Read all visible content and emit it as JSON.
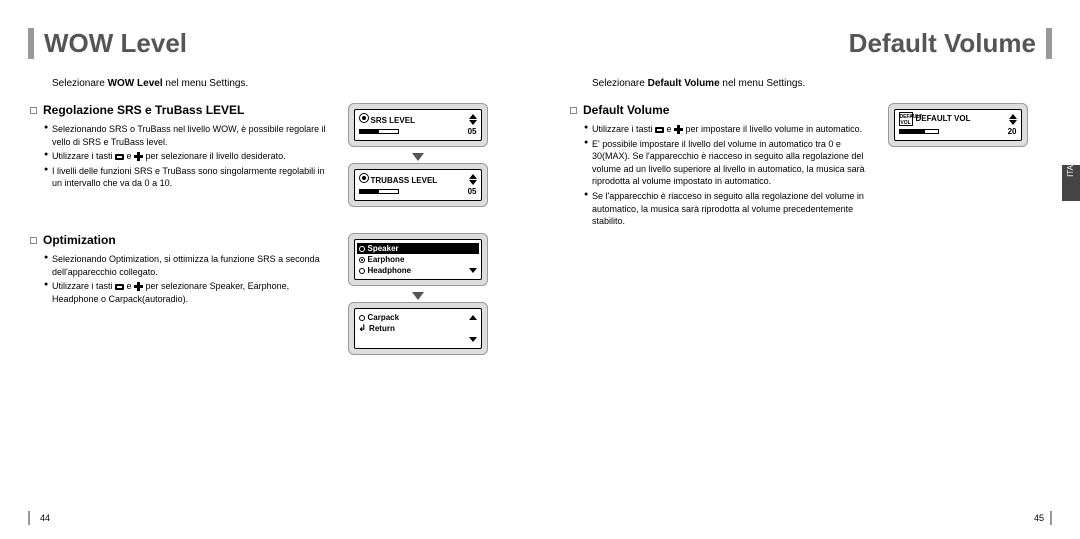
{
  "header": {
    "left": "WOW Level",
    "right": "Default Volume"
  },
  "leftPage": {
    "instructionPrefix": "Selezionare ",
    "instructionBold": "WOW Level",
    "instructionSuffix": " nel menu Settings.",
    "section1": {
      "title": "Regolazione SRS e TruBass LEVEL",
      "b1": "Selezionando SRS o TruBass nel livello WOW, è possibile regolare il vello di SRS e TruBass level.",
      "b2a": "Utilizzare i tasti ",
      "b2b": " e ",
      "b2c": " per selezionare il livello desiderato.",
      "b3": "I livelli delle funzioni SRS e TruBass sono singolarmente regolabili in un intervallo che va da 0 a 10.",
      "srsLabel": "SRS LEVEL",
      "srsValue": "05",
      "trubassLabel": "TRUBASS LEVEL",
      "trubassValue": "05"
    },
    "section2": {
      "title": "Optimization",
      "b1": "Selezionando Optimization, si ottimizza la funzione SRS a seconda dell'apparecchio collegato.",
      "b2a": "Utilizzare i tasti ",
      "b2b": " e ",
      "b2c": " per selezionare Speaker, Earphone, Headphone o Carpack(autoradio).",
      "opts": {
        "o1": "Speaker",
        "o2": "Earphone",
        "o3": "Headphone",
        "o4": "Carpack",
        "o5": "Return"
      }
    },
    "pageNum": "44"
  },
  "rightPage": {
    "instructionPrefix": "Selezionare ",
    "instructionBold": "Default Volume",
    "instructionSuffix": " nel menu Settings.",
    "section1": {
      "title": "Default Volume",
      "b1a": "Utilizzare i tasti ",
      "b1b": " e ",
      "b1c": " per impostare il livello volume in automatico.",
      "b2": "E' possibile impostare il livello del volume in automatico tra 0 e 30(MAX). Se l'apparecchio è riacceso in seguito alla regolazione del volume ad un livello superiore al livello in automatico, la musica sarà riprodotta al volume impostato in automatico.",
      "b3": "Se l'apparecchio è riacceso in seguito alla regolazione del volume in automatico, la musica sarà riprodotta al volume precedentemente stabilito.",
      "dvLabel": "DEFAULT VOL",
      "dvValue": "20",
      "dvIconText": "DEFAULT VOL"
    },
    "pageNum": "45",
    "sideTab": "ITA"
  }
}
